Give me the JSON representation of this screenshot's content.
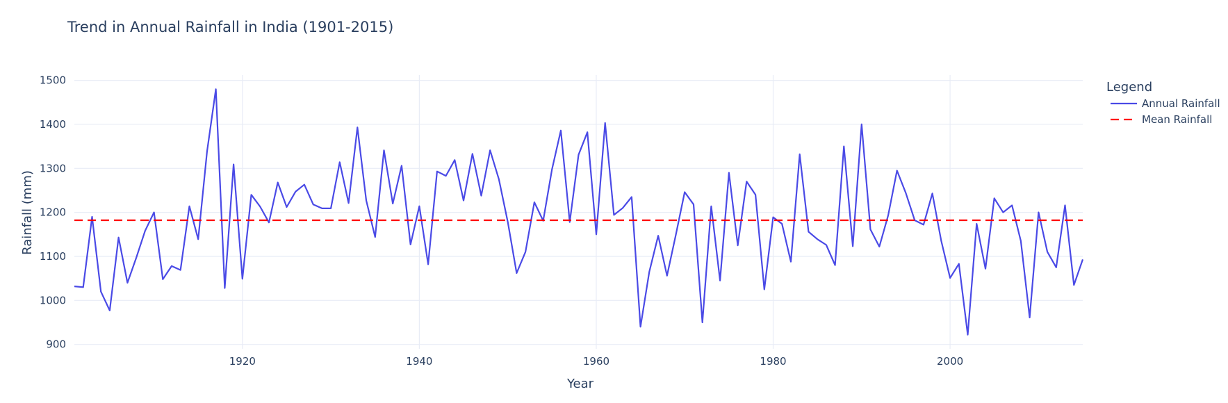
{
  "chart_data": {
    "type": "line",
    "title": "Trend in Annual Rainfall in India (1901-2015)",
    "xlabel": "Year",
    "ylabel": "Rainfall (mm)",
    "xlim": [
      1901,
      2015
    ],
    "ylim": [
      890,
      1512
    ],
    "x_ticks": [
      1920,
      1940,
      1960,
      1980,
      2000
    ],
    "y_ticks": [
      900,
      1000,
      1100,
      1200,
      1300,
      1400,
      1500
    ],
    "grid": true,
    "legend": {
      "title": "Legend",
      "position": "right"
    },
    "colors": {
      "annual": "#4a4ae6",
      "mean": "#ff0000",
      "grid": "#e8ecf6",
      "text": "#2a3f5f"
    },
    "series": [
      {
        "name": "Annual Rainfall",
        "style": "solid",
        "x": [
          1901,
          1902,
          1903,
          1904,
          1905,
          1906,
          1907,
          1908,
          1909,
          1910,
          1911,
          1912,
          1913,
          1914,
          1915,
          1916,
          1917,
          1918,
          1919,
          1920,
          1921,
          1922,
          1923,
          1924,
          1925,
          1926,
          1927,
          1928,
          1929,
          1930,
          1931,
          1932,
          1933,
          1934,
          1935,
          1936,
          1937,
          1938,
          1939,
          1940,
          1941,
          1942,
          1943,
          1944,
          1945,
          1946,
          1947,
          1948,
          1949,
          1950,
          1951,
          1952,
          1953,
          1954,
          1955,
          1956,
          1957,
          1958,
          1959,
          1960,
          1961,
          1962,
          1963,
          1964,
          1965,
          1966,
          1967,
          1968,
          1969,
          1970,
          1971,
          1972,
          1973,
          1974,
          1975,
          1976,
          1977,
          1978,
          1979,
          1980,
          1981,
          1982,
          1983,
          1984,
          1985,
          1986,
          1987,
          1988,
          1989,
          1990,
          1991,
          1992,
          1993,
          1994,
          1995,
          1996,
          1997,
          1998,
          1999,
          2000,
          2001,
          2002,
          2003,
          2004,
          2005,
          2006,
          2007,
          2008,
          2009,
          2010,
          2011,
          2012,
          2013,
          2014,
          2015
        ],
        "y": [
          1032,
          1030,
          1190,
          1020,
          977,
          1143,
          1040,
          1097,
          1158,
          1200,
          1048,
          1078,
          1069,
          1214,
          1139,
          1338,
          1480,
          1028,
          1309,
          1049,
          1240,
          1213,
          1177,
          1268,
          1212,
          1247,
          1263,
          1218,
          1209,
          1209,
          1314,
          1221,
          1393,
          1227,
          1144,
          1341,
          1220,
          1306,
          1127,
          1214,
          1082,
          1293,
          1283,
          1319,
          1227,
          1333,
          1238,
          1341,
          1275,
          1178,
          1062,
          1110,
          1223,
          1181,
          1298,
          1386,
          1178,
          1331,
          1382,
          1150,
          1403,
          1194,
          1210,
          1235,
          940,
          1065,
          1147,
          1056,
          1149,
          1246,
          1218,
          950,
          1214,
          1045,
          1290,
          1125,
          1270,
          1240,
          1025,
          1189,
          1174,
          1088,
          1332,
          1156,
          1139,
          1126,
          1080,
          1350,
          1123,
          1400,
          1161,
          1122,
          1193,
          1295,
          1244,
          1182,
          1172,
          1243,
          1135,
          1051,
          1083,
          922,
          1174,
          1072,
          1232,
          1200,
          1216,
          1135,
          961,
          1200,
          1110,
          1075,
          1216,
          1035,
          1093
        ]
      },
      {
        "name": "Mean Rainfall",
        "style": "dashed",
        "x": [
          1901,
          2015
        ],
        "y": [
          1182,
          1182
        ]
      }
    ]
  }
}
